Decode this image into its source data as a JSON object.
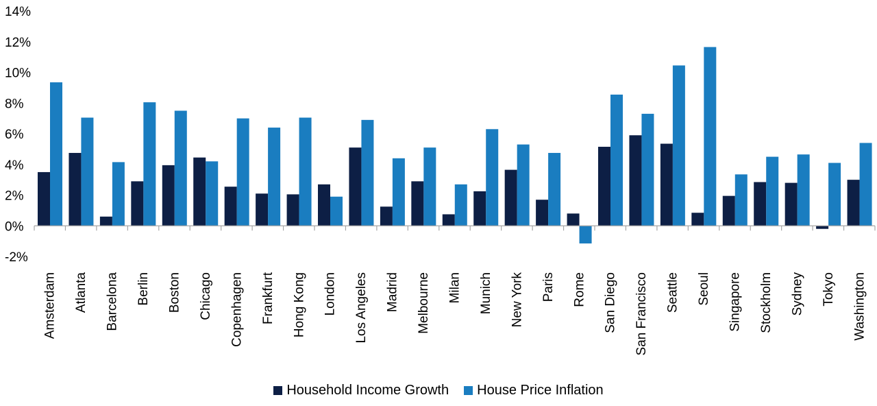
{
  "chart_data": {
    "type": "bar",
    "categories": [
      "Amsterdam",
      "Atlanta",
      "Barcelona",
      "Berlin",
      "Boston",
      "Chicago",
      "Copenhagen",
      "Frankfurt",
      "Hong Kong",
      "London",
      "Los Angeles",
      "Madrid",
      "Melbourne",
      "Milan",
      "Munich",
      "New York",
      "Paris",
      "Rome",
      "San Diego",
      "San Francisco",
      "Seattle",
      "Seoul",
      "Singapore",
      "Stockholm",
      "Sydney",
      "Tokyo",
      "Washington"
    ],
    "series": [
      {
        "name": "Household Income Growth",
        "color": "#0d1f45",
        "values": [
          3.5,
          4.75,
          0.6,
          2.9,
          3.95,
          4.45,
          2.55,
          2.1,
          2.05,
          2.7,
          5.1,
          1.25,
          2.9,
          0.75,
          2.25,
          3.65,
          1.7,
          0.8,
          5.15,
          5.9,
          5.35,
          0.85,
          1.95,
          2.85,
          2.8,
          -0.2,
          3.0
        ]
      },
      {
        "name": "House Price Inflation",
        "color": "#1a7dc0",
        "values": [
          9.35,
          7.05,
          4.15,
          8.05,
          7.5,
          4.2,
          7.0,
          6.4,
          7.05,
          1.9,
          6.9,
          4.4,
          5.1,
          2.7,
          6.3,
          5.3,
          4.75,
          -1.15,
          8.55,
          7.3,
          10.45,
          11.65,
          3.35,
          4.5,
          4.65,
          4.1,
          5.4
        ]
      }
    ],
    "ylim": [
      -2,
      14
    ],
    "yticks": [
      -2,
      0,
      2,
      4,
      6,
      8,
      10,
      12,
      14
    ],
    "ytick_labels": [
      "-2%",
      "0%",
      "2%",
      "4%",
      "6%",
      "8%",
      "10%",
      "12%",
      "14%"
    ],
    "title": "",
    "xlabel": "",
    "ylabel": "",
    "grid": false,
    "legend_position": "bottom-center"
  }
}
